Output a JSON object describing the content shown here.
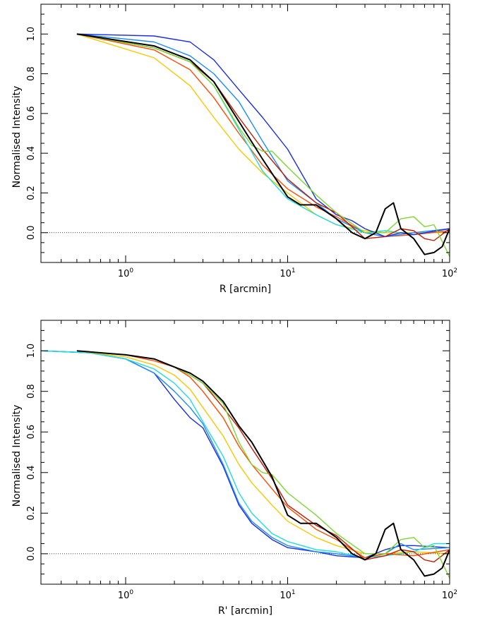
{
  "chart_data": [
    {
      "type": "line",
      "title": "",
      "xlabel": "R [arcmin]",
      "ylabel": "Normalised Intensity",
      "xscale": "log",
      "xlim": [
        0.3,
        100
      ],
      "ylim": [
        -0.15,
        1.15
      ],
      "x_tick_labels": [
        "1",
        "1",
        "1"
      ],
      "x_tick_exponents": [
        "0",
        "1",
        "2"
      ],
      "x_tick_values": [
        1,
        10,
        100
      ],
      "x_tick_base": "10",
      "y_tick_labels": [
        "0.0",
        "0.2",
        "0.4",
        "0.6",
        "0.8",
        "1.0"
      ],
      "y_tick_values": [
        0,
        0.2,
        0.4,
        0.6,
        0.8,
        1.0
      ],
      "reference_line": {
        "y": 0,
        "style": "dotted"
      },
      "grid": false,
      "series": [
        {
          "color": "#f5c800",
          "x": [
            0.5,
            1.5,
            2.5,
            3.5,
            5,
            7,
            10,
            15,
            20,
            30,
            40,
            60,
            100
          ],
          "y": [
            1.0,
            0.88,
            0.74,
            0.58,
            0.42,
            0.3,
            0.2,
            0.09,
            0.04,
            0.01,
            0.0,
            0.0,
            0.0
          ]
        },
        {
          "color": "#ff4a00",
          "x": [
            0.5,
            1.5,
            2.5,
            3.5,
            5,
            7,
            10,
            15,
            20,
            30,
            40,
            60,
            100
          ],
          "y": [
            1.0,
            0.92,
            0.82,
            0.68,
            0.5,
            0.34,
            0.22,
            0.13,
            0.08,
            0.0,
            -0.02,
            -0.01,
            0.01
          ]
        },
        {
          "color": "#22dcdc",
          "x": [
            0.5,
            1.5,
            2.5,
            3.5,
            5,
            7,
            10,
            15,
            20,
            30,
            40,
            60,
            100
          ],
          "y": [
            1.0,
            0.93,
            0.86,
            0.74,
            0.52,
            0.31,
            0.17,
            0.09,
            0.04,
            0.0,
            0.01,
            -0.01,
            0.02
          ]
        },
        {
          "color": "#1a8cff",
          "x": [
            0.5,
            1.5,
            2.5,
            3.5,
            5,
            7,
            10,
            15,
            20,
            30,
            40,
            60,
            100
          ],
          "y": [
            1.0,
            0.96,
            0.89,
            0.8,
            0.66,
            0.46,
            0.26,
            0.15,
            0.07,
            0.0,
            -0.02,
            0.0,
            0.02
          ]
        },
        {
          "color": "#1a2ee0",
          "x": [
            0.5,
            1.5,
            2.5,
            3.5,
            5,
            7,
            10,
            15,
            20,
            25,
            30,
            40,
            50,
            60,
            100
          ],
          "y": [
            1.0,
            0.99,
            0.96,
            0.87,
            0.72,
            0.58,
            0.42,
            0.17,
            0.09,
            0.06,
            0.02,
            -0.02,
            0.0,
            -0.01,
            0.02
          ]
        },
        {
          "color": "#c01a00",
          "x": [
            0.5,
            1.5,
            2.5,
            3.5,
            5,
            7,
            10,
            15,
            20,
            30,
            40,
            50,
            60,
            70,
            80,
            100
          ],
          "y": [
            1.0,
            0.93,
            0.86,
            0.76,
            0.58,
            0.42,
            0.27,
            0.15,
            0.1,
            -0.03,
            -0.02,
            0.02,
            0.01,
            -0.03,
            -0.04,
            0.02
          ]
        },
        {
          "color": "#7ed630",
          "x": [
            0.5,
            1.5,
            2.5,
            3.5,
            5,
            6,
            7,
            8,
            10,
            15,
            20,
            30,
            40,
            50,
            60,
            70,
            80,
            100
          ],
          "y": [
            1.0,
            0.93,
            0.86,
            0.74,
            0.53,
            0.44,
            0.41,
            0.41,
            0.33,
            0.19,
            0.1,
            0.0,
            0.0,
            0.07,
            0.08,
            0.03,
            0.04,
            -0.12
          ]
        },
        {
          "color": "#000000",
          "x": [
            0.5,
            1.5,
            2.5,
            3.5,
            5,
            7,
            10,
            12,
            15,
            20,
            25,
            30,
            35,
            40,
            45,
            50,
            60,
            70,
            80,
            90,
            100
          ],
          "y": [
            1.0,
            0.94,
            0.87,
            0.76,
            0.56,
            0.37,
            0.18,
            0.14,
            0.14,
            0.07,
            0.0,
            -0.03,
            0.0,
            0.12,
            0.15,
            0.02,
            -0.03,
            -0.11,
            -0.1,
            -0.07,
            0.02
          ]
        }
      ]
    },
    {
      "type": "line",
      "title": "",
      "xlabel": "R' [arcmin]",
      "ylabel": "Normalised Intensity",
      "xscale": "log",
      "xlim": [
        0.3,
        100
      ],
      "ylim": [
        -0.15,
        1.15
      ],
      "x_tick_labels": [
        "1",
        "1",
        "1"
      ],
      "x_tick_exponents": [
        "0",
        "1",
        "2"
      ],
      "x_tick_values": [
        1,
        10,
        100
      ],
      "x_tick_base": "10",
      "y_tick_labels": [
        "0.0",
        "0.2",
        "0.4",
        "0.6",
        "0.8",
        "1.0"
      ],
      "y_tick_values": [
        0,
        0.2,
        0.4,
        0.6,
        0.8,
        1.0
      ],
      "reference_line": {
        "y": 0,
        "style": "dotted"
      },
      "grid": false,
      "series": [
        {
          "color": "#1a2ee0",
          "x": [
            0.3,
            0.6,
            1.0,
            1.5,
            2.0,
            2.5,
            3.0,
            4.0,
            5.0,
            6.0,
            8.0,
            10,
            15,
            20,
            30,
            40,
            50,
            60,
            100
          ],
          "y": [
            1.0,
            0.99,
            0.96,
            0.89,
            0.76,
            0.67,
            0.62,
            0.43,
            0.24,
            0.15,
            0.07,
            0.03,
            0.01,
            -0.01,
            -0.02,
            0.02,
            0.04,
            0.04,
            0.03
          ]
        },
        {
          "color": "#1a8cff",
          "x": [
            0.3,
            0.6,
            1.0,
            1.5,
            2.0,
            2.5,
            3.0,
            4.0,
            5.0,
            6.0,
            8.0,
            10,
            15,
            20,
            30,
            40,
            50,
            60,
            100
          ],
          "y": [
            1.0,
            0.99,
            0.96,
            0.89,
            0.8,
            0.72,
            0.64,
            0.44,
            0.25,
            0.16,
            0.08,
            0.04,
            0.01,
            0.0,
            -0.02,
            0.0,
            0.05,
            0.02,
            0.03
          ]
        },
        {
          "color": "#22dcdc",
          "x": [
            0.3,
            0.6,
            1.0,
            1.5,
            2.0,
            2.5,
            3.0,
            4.0,
            5.0,
            6.0,
            8.0,
            10,
            15,
            20,
            30,
            40,
            60,
            80,
            100
          ],
          "y": [
            1.0,
            0.99,
            0.96,
            0.91,
            0.84,
            0.76,
            0.65,
            0.48,
            0.3,
            0.2,
            0.1,
            0.06,
            0.02,
            0.01,
            -0.02,
            -0.01,
            0.01,
            0.05,
            0.05
          ]
        },
        {
          "color": "#f5c800",
          "x": [
            0.5,
            1.0,
            1.5,
            2.0,
            2.5,
            3.0,
            4.0,
            5.0,
            6.0,
            8.0,
            10,
            15,
            20,
            30,
            40,
            60,
            100
          ],
          "y": [
            1.0,
            0.97,
            0.93,
            0.88,
            0.81,
            0.72,
            0.58,
            0.44,
            0.35,
            0.24,
            0.16,
            0.08,
            0.04,
            0.0,
            0.0,
            0.01,
            0.0
          ]
        },
        {
          "color": "#ff4a00",
          "x": [
            0.5,
            1.0,
            1.5,
            2.0,
            2.5,
            3.0,
            4.0,
            5.0,
            6.0,
            8.0,
            10,
            15,
            20,
            30,
            40,
            60,
            100
          ],
          "y": [
            1.0,
            0.98,
            0.95,
            0.92,
            0.87,
            0.8,
            0.67,
            0.53,
            0.44,
            0.32,
            0.23,
            0.12,
            0.07,
            -0.02,
            0.0,
            -0.01,
            0.02
          ]
        },
        {
          "color": "#c01a00",
          "x": [
            0.5,
            1.0,
            1.5,
            2.0,
            2.5,
            3.0,
            4.0,
            5.0,
            6.0,
            8.0,
            10,
            15,
            20,
            30,
            40,
            50,
            60,
            70,
            80,
            100
          ],
          "y": [
            1.0,
            0.98,
            0.96,
            0.92,
            0.88,
            0.84,
            0.72,
            0.62,
            0.52,
            0.37,
            0.24,
            0.14,
            0.09,
            -0.03,
            -0.01,
            0.02,
            0.01,
            -0.03,
            -0.04,
            0.02
          ]
        },
        {
          "color": "#7ed630",
          "x": [
            0.5,
            1.0,
            1.5,
            2.0,
            2.5,
            3.0,
            4.0,
            5.0,
            6.0,
            7.0,
            8.0,
            10,
            15,
            20,
            30,
            40,
            50,
            60,
            70,
            80,
            100
          ],
          "y": [
            1.0,
            0.98,
            0.96,
            0.92,
            0.88,
            0.84,
            0.74,
            0.55,
            0.44,
            0.4,
            0.39,
            0.3,
            0.19,
            0.1,
            0.0,
            0.0,
            0.07,
            0.08,
            0.03,
            0.04,
            -0.12
          ]
        },
        {
          "color": "#000000",
          "x": [
            0.5,
            1.0,
            1.5,
            2.0,
            2.5,
            3.0,
            4.0,
            5.0,
            6.0,
            8.0,
            10,
            12,
            15,
            20,
            25,
            30,
            35,
            40,
            45,
            50,
            60,
            70,
            80,
            90,
            100
          ],
          "y": [
            1.0,
            0.98,
            0.96,
            0.92,
            0.89,
            0.85,
            0.75,
            0.63,
            0.55,
            0.38,
            0.19,
            0.15,
            0.15,
            0.08,
            0.0,
            -0.03,
            0.0,
            0.12,
            0.15,
            0.02,
            -0.03,
            -0.11,
            -0.1,
            -0.07,
            0.02
          ]
        }
      ]
    }
  ]
}
